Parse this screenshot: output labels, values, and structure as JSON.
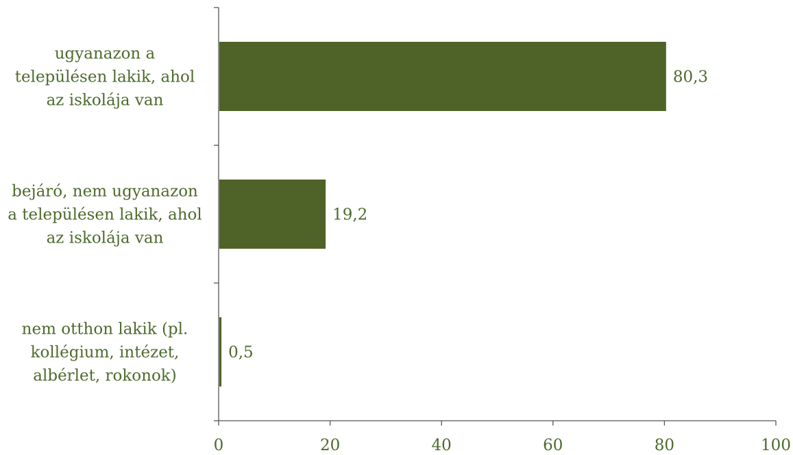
{
  "chart_data": {
    "type": "bar",
    "orientation": "horizontal",
    "categories": [
      [
        "ugyanazon a",
        "településen lakik, ahol",
        "az iskolája van"
      ],
      [
        "bejáró, nem ugyanazon",
        "a településen lakik, ahol",
        "az iskolája van"
      ],
      [
        "nem otthon lakik (pl.",
        "kollégium, intézet,",
        "albérlet, rokonok)"
      ]
    ],
    "values": [
      80.3,
      19.2,
      0.5
    ],
    "value_labels": [
      "80,3",
      "19,2",
      "0,5"
    ],
    "xlim": [
      0,
      100
    ],
    "x_ticks": [
      0,
      20,
      40,
      60,
      80,
      100
    ],
    "x_tick_labels": [
      "0",
      "20",
      "40",
      "60",
      "80",
      "100"
    ],
    "grid": false,
    "colors": {
      "bar": "#4f6228",
      "text": "#4d6a2c",
      "axis": "#555555"
    }
  }
}
